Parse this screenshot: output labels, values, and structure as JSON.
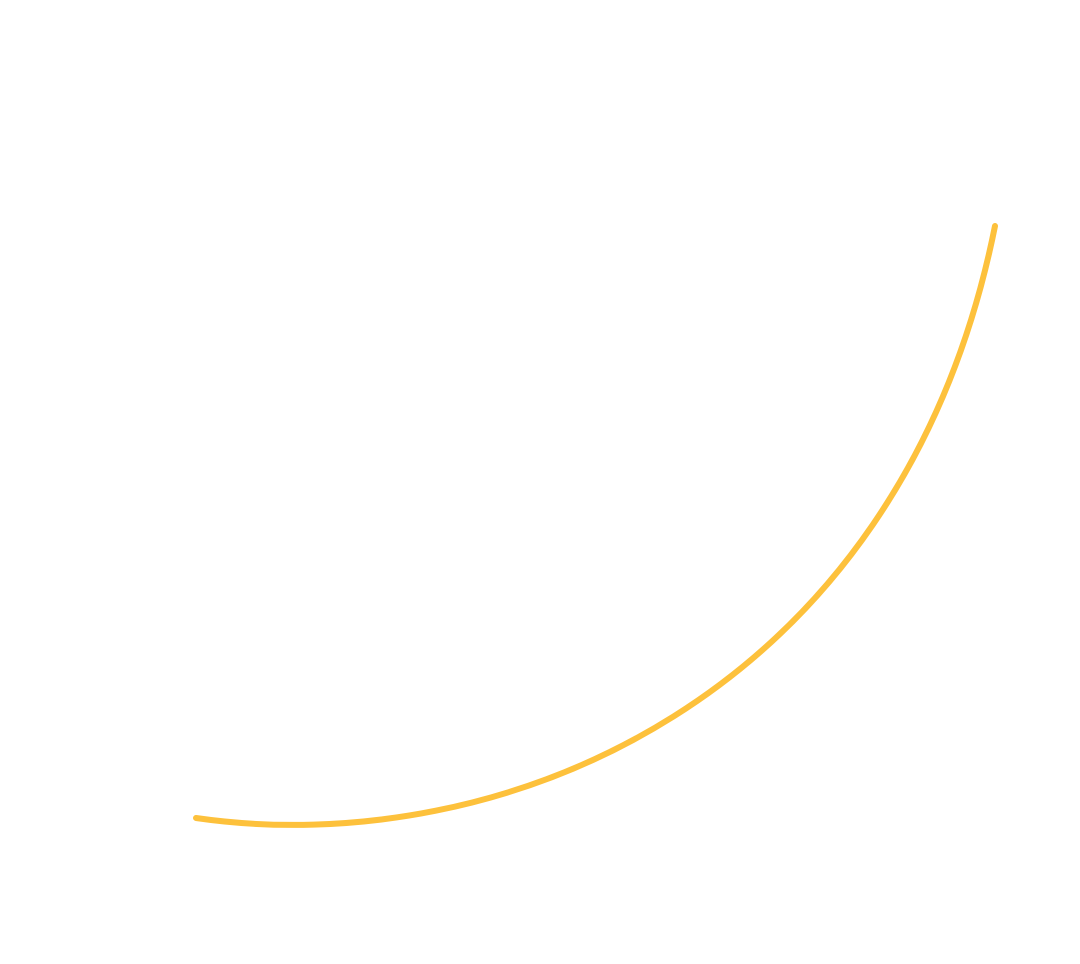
{
  "canvas": {
    "background": "#ffffff"
  },
  "curve": {
    "stroke_color": "#FDC13C"
  }
}
